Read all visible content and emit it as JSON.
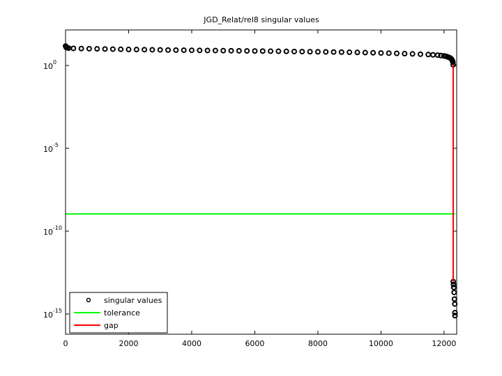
{
  "chart_data": {
    "type": "scatter",
    "title": "JGD_Relat/rel8 singular values",
    "xlim": [
      0,
      12400
    ],
    "xticks": [
      0,
      2000,
      4000,
      6000,
      8000,
      10000,
      12000
    ],
    "ylim": [
      6e-17,
      140
    ],
    "log_y": true,
    "yticks": [
      {
        "value": 1e-15,
        "label": "10",
        "exponent": "-15"
      },
      {
        "value": 1e-10,
        "label": "10",
        "exponent": "-10"
      },
      {
        "value": 1e-05,
        "label": "10",
        "exponent": "-5"
      },
      {
        "value": 1,
        "label": "10",
        "exponent": "0"
      }
    ],
    "legend": "lower left",
    "series": [
      {
        "name": "singular values",
        "color": "#000000",
        "marker": "circle",
        "x": [
          1,
          20,
          50,
          100,
          250,
          500,
          750,
          1000,
          1250,
          1500,
          1750,
          2000,
          2250,
          2500,
          2750,
          3000,
          3250,
          3500,
          3750,
          4000,
          4250,
          4500,
          4750,
          5000,
          5250,
          5500,
          5750,
          6000,
          6250,
          6500,
          6750,
          7000,
          7250,
          7500,
          7750,
          8000,
          8250,
          8500,
          8750,
          9000,
          9250,
          9500,
          9750,
          10000,
          10250,
          10500,
          10750,
          11000,
          11250,
          11500,
          11650,
          11800,
          11900,
          12000,
          12050,
          12100,
          12150,
          12200,
          12230,
          12250,
          12265,
          12280,
          12290,
          12291,
          12300,
          12310,
          12320,
          12330,
          12340,
          12345,
          12347
        ],
        "values": [
          15,
          12.5,
          11.8,
          11.2,
          10.8,
          10.5,
          10.3,
          10.1,
          9.9,
          9.7,
          9.5,
          9.3,
          9.2,
          9.0,
          8.9,
          8.8,
          8.6,
          8.5,
          8.4,
          8.3,
          8.2,
          8.1,
          8.0,
          7.9,
          7.8,
          7.7,
          7.6,
          7.5,
          7.4,
          7.3,
          7.2,
          7.1,
          7.0,
          6.9,
          6.8,
          6.7,
          6.6,
          6.5,
          6.4,
          6.3,
          6.15,
          6.0,
          5.85,
          5.7,
          5.55,
          5.4,
          5.2,
          5.0,
          4.8,
          4.6,
          4.4,
          4.2,
          4.0,
          3.8,
          3.6,
          3.4,
          3.1,
          2.8,
          2.5,
          2.2,
          1.9,
          1.6,
          1.1,
          9e-14,
          6e-14,
          4e-14,
          2e-14,
          8e-15,
          4e-15,
          1.2e-15,
          8e-16
        ]
      },
      {
        "name": "tolerance",
        "color": "#00ff00",
        "marker": "line",
        "x": [
          1,
          12347
        ],
        "values": [
          1.1e-09,
          1.1e-09
        ]
      },
      {
        "name": "gap",
        "color": "#ff0000",
        "marker": "line",
        "x": [
          12290,
          12290
        ],
        "values": [
          1.1,
          9e-14
        ]
      }
    ]
  }
}
